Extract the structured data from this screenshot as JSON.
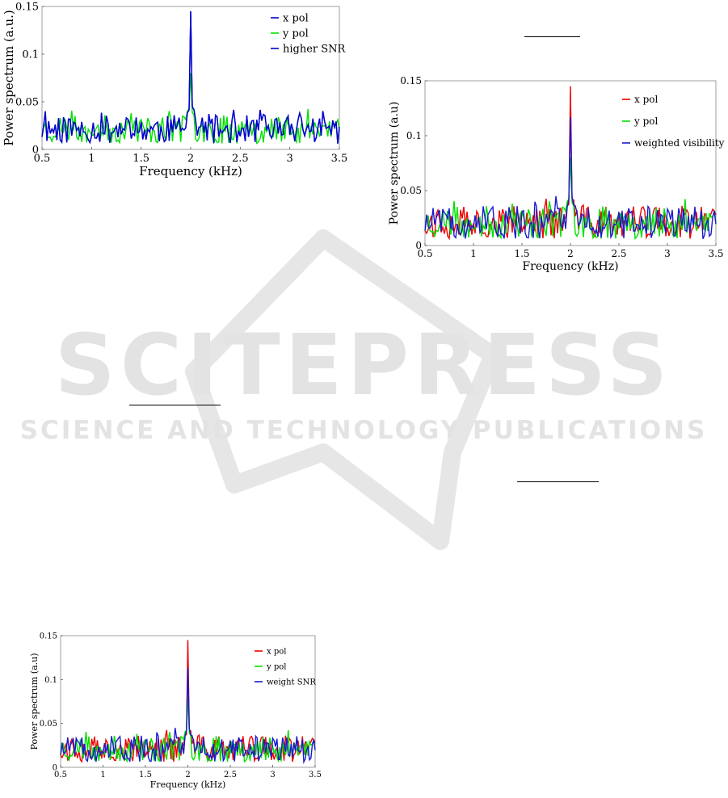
{
  "watermark": {
    "title": "SCITEPRESS",
    "subtitle": "SCIENCE AND TECHNOLOGY PUBLICATIONS",
    "color": "#e3e3e3"
  },
  "chart_data": [
    {
      "id": "chart-a",
      "type": "line",
      "xlabel": "Frequency (kHz)",
      "ylabel": "Power spectrum (a.u.)",
      "xlim": [
        0.5,
        3.5
      ],
      "ylim": [
        0,
        0.15
      ],
      "xticks": [
        "0.5",
        "1",
        "1.5",
        "2",
        "2.5",
        "3",
        "3.5"
      ],
      "yticks": [
        "0",
        "0.05",
        "0.1",
        "0.15"
      ],
      "grid": false,
      "legend_position": "top-right",
      "series": [
        {
          "name": "y pol",
          "color": "#00e000",
          "peak": 0.08,
          "seed": 23
        },
        {
          "name": "x pol",
          "color": "#0000cc",
          "peak": 0.145,
          "seed": 11
        },
        {
          "name": "higher SNR",
          "color": "#0000cc",
          "peak": 0.145,
          "seed": 11
        }
      ]
    },
    {
      "id": "chart-b",
      "type": "line",
      "xlabel": "Frequency (kHz)",
      "ylabel": "Power spectrum (a.u)",
      "xlim": [
        0.5,
        3.5
      ],
      "ylim": [
        0,
        0.15
      ],
      "xticks": [
        "0.5",
        "1",
        "1.5",
        "2",
        "2.5",
        "3",
        "3.5"
      ],
      "yticks": [
        "0",
        "0.05",
        "0.1",
        "0.15"
      ],
      "grid": false,
      "legend_position": "top-right",
      "series": [
        {
          "name": "x pol",
          "color": "#ee0000",
          "peak": 0.145,
          "seed": 37
        },
        {
          "name": "y pol",
          "color": "#00e000",
          "peak": 0.08,
          "seed": 23
        },
        {
          "name": "weighted visibility",
          "color": "#1a1acc",
          "peak": 0.117,
          "seed": 51
        }
      ]
    },
    {
      "id": "chart-c",
      "type": "line",
      "xlabel": "Frequency (kHz)",
      "ylabel": "Power spectrum (a.u)",
      "xlim": [
        0.5,
        3.5
      ],
      "ylim": [
        0,
        0.15
      ],
      "xticks": [
        "0.5",
        "1",
        "1.5",
        "2",
        "2.5",
        "3",
        "3.5"
      ],
      "yticks": [
        "0",
        "0.05",
        "0.1",
        "0.15"
      ],
      "grid": false,
      "legend_position": "top-right",
      "series": [
        {
          "name": "x pol",
          "color": "#ee0000",
          "peak": 0.145,
          "seed": 37
        },
        {
          "name": "y pol",
          "color": "#00e000",
          "peak": 0.08,
          "seed": 23
        },
        {
          "name": "weight SNR",
          "color": "#1a1acc",
          "peak": 0.113,
          "seed": 51
        }
      ]
    }
  ]
}
